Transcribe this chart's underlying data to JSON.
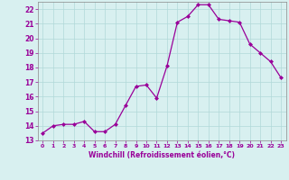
{
  "x": [
    0,
    1,
    2,
    3,
    4,
    5,
    6,
    7,
    8,
    9,
    10,
    11,
    12,
    13,
    14,
    15,
    16,
    17,
    18,
    19,
    20,
    21,
    22,
    23
  ],
  "y": [
    13.5,
    14.0,
    14.1,
    14.1,
    14.3,
    13.6,
    13.6,
    14.1,
    15.4,
    16.7,
    16.8,
    15.9,
    18.1,
    21.1,
    21.5,
    22.3,
    22.3,
    21.3,
    21.2,
    21.1,
    19.6,
    19.0,
    18.4,
    17.3
  ],
  "line_color": "#990099",
  "marker": "D",
  "marker_size": 2,
  "bg_color": "#d8f0f0",
  "grid_color": "#b0d8d8",
  "xlabel": "Windchill (Refroidissement éolien,°C)",
  "xlabel_color": "#990099",
  "tick_color": "#990099",
  "ylim": [
    13,
    22.5
  ],
  "xlim": [
    -0.5,
    23.5
  ],
  "yticks": [
    13,
    14,
    15,
    16,
    17,
    18,
    19,
    20,
    21,
    22
  ],
  "xticks": [
    0,
    1,
    2,
    3,
    4,
    5,
    6,
    7,
    8,
    9,
    10,
    11,
    12,
    13,
    14,
    15,
    16,
    17,
    18,
    19,
    20,
    21,
    22,
    23
  ]
}
